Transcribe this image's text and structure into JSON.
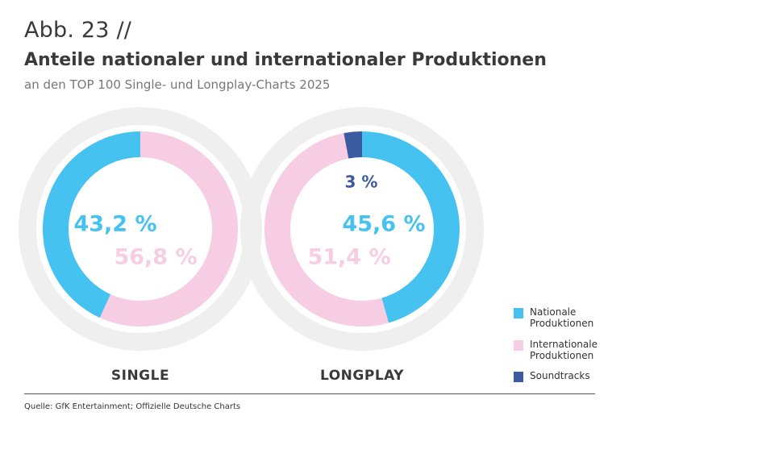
{
  "header": {
    "fig_number": "Abb. 23 //",
    "title": "Anteile nationaler und internationaler Produktionen",
    "subtitle": "an den TOP 100 Single- und Longplay-Charts 2025"
  },
  "colors": {
    "national": "#46c2f0",
    "international": "#f7cde3",
    "soundtracks": "#3b5aa0",
    "track": "#efefef"
  },
  "chart_data": [
    {
      "type": "pie",
      "title": "SINGLE",
      "slices": [
        {
          "label": "Nationale Produktionen",
          "value": 43.2,
          "value_label": "43,2 %",
          "color": "#46c2f0"
        },
        {
          "label": "Internationale Produktionen",
          "value": 56.8,
          "value_label": "56,8 %",
          "color": "#f7cde3"
        }
      ]
    },
    {
      "type": "pie",
      "title": "LONGPLAY",
      "slices": [
        {
          "label": "Nationale Produktionen",
          "value": 45.6,
          "value_label": "45,6 %",
          "color": "#46c2f0"
        },
        {
          "label": "Internationale Produktionen",
          "value": 51.4,
          "value_label": "51,4 %",
          "color": "#f7cde3"
        },
        {
          "label": "Soundtracks",
          "value": 3,
          "value_label": "3 %",
          "color": "#3b5aa0"
        }
      ]
    }
  ],
  "legend": {
    "items": [
      {
        "label": "Nationale\nProduktionen",
        "color": "#46c2f0"
      },
      {
        "label": "Internationale\nProduktionen",
        "color": "#f7cde3"
      },
      {
        "label": "Soundtracks",
        "color": "#3b5aa0"
      }
    ]
  },
  "footer": {
    "source": "Quelle: GfK Entertainment; Offizielle Deutsche Charts"
  }
}
